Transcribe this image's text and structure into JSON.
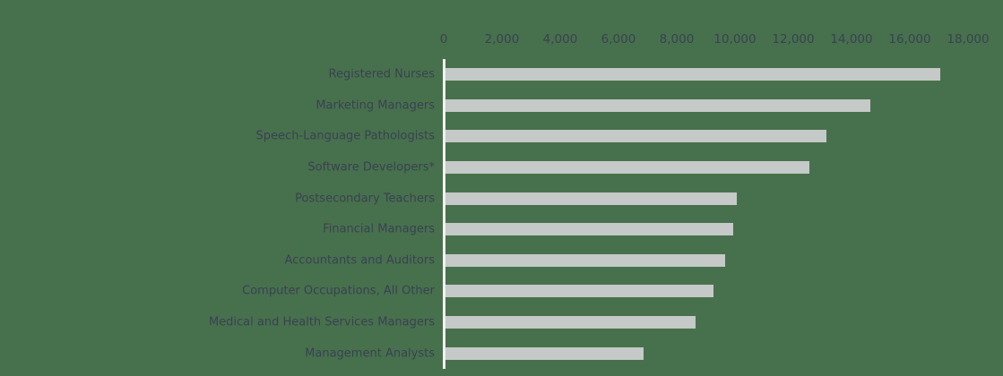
{
  "colors": {
    "background": "#47714d",
    "bar_fill": "#c5c9c7",
    "text": "#3a4152",
    "axis_line": "#f2f3f0"
  },
  "chart_data": {
    "type": "bar",
    "orientation": "horizontal",
    "title": "",
    "xlabel": "",
    "ylabel": "",
    "categories": [
      "Registered Nurses",
      "Marketing Managers",
      "Speech-Language Pathologists",
      "Software Developers*",
      "Postsecondary Teachers",
      "Financial Managers",
      "Accountants and Auditors",
      "Computer Occupations, All Other",
      "Medical and Health Services Managers",
      "Management Analysts"
    ],
    "values": [
      17000,
      14600,
      13100,
      12500,
      10000,
      9900,
      9600,
      9200,
      8600,
      6800
    ],
    "xlim": [
      0,
      18000
    ],
    "x_tick_interval": 2000,
    "x_tick_labels": [
      "0",
      "2,000",
      "4,000",
      "6,000",
      "8,000",
      "10,000",
      "12,000",
      "14,000",
      "16,000",
      "18,000"
    ],
    "grid": "off",
    "legend": "none",
    "x_axis_position": "top"
  }
}
